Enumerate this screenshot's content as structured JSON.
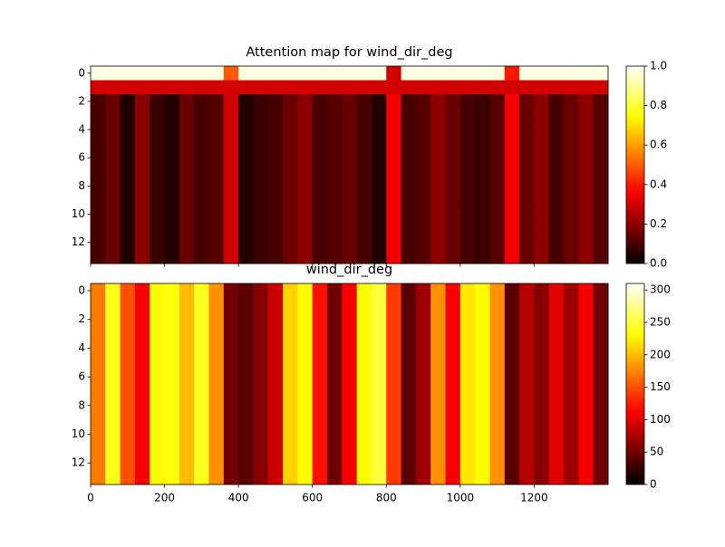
{
  "chart_data": [
    {
      "type": "heatmap",
      "title": "Attention map for wind_dir_deg",
      "colormap": "hot",
      "x_bins": [
        0,
        40,
        80,
        120,
        160,
        200,
        240,
        280,
        320,
        360,
        400,
        440,
        480,
        520,
        560,
        600,
        640,
        680,
        720,
        760,
        800,
        840,
        880,
        920,
        960,
        1000,
        1040,
        1080,
        1120,
        1160,
        1200,
        1240,
        1280,
        1320,
        1360,
        1400
      ],
      "z": [
        [
          0.97,
          0.97,
          0.97,
          0.97,
          0.97,
          0.97,
          0.97,
          0.97,
          0.97,
          0.5,
          0.97,
          0.97,
          0.97,
          0.97,
          0.97,
          0.97,
          0.97,
          0.97,
          0.97,
          0.97,
          0.3,
          0.97,
          0.97,
          0.97,
          0.97,
          0.97,
          0.97,
          0.97,
          0.4,
          0.97,
          0.97,
          0.97,
          0.97,
          0.97,
          0.97
        ],
        [
          0.3,
          0.3,
          0.3,
          0.3,
          0.3,
          0.3,
          0.3,
          0.3,
          0.3,
          0.3,
          0.3,
          0.3,
          0.3,
          0.3,
          0.3,
          0.3,
          0.3,
          0.3,
          0.3,
          0.3,
          0.3,
          0.3,
          0.3,
          0.3,
          0.3,
          0.3,
          0.3,
          0.3,
          0.3,
          0.3,
          0.3,
          0.3,
          0.3,
          0.3,
          0.3
        ],
        [
          0.1,
          0.15,
          0.05,
          0.2,
          0.08,
          0.05,
          0.15,
          0.1,
          0.12,
          0.3,
          0.05,
          0.08,
          0.1,
          0.15,
          0.2,
          0.1,
          0.12,
          0.15,
          0.1,
          0.05,
          0.35,
          0.1,
          0.12,
          0.2,
          0.15,
          0.1,
          0.08,
          0.12,
          0.35,
          0.15,
          0.2,
          0.1,
          0.15,
          0.2,
          0.12
        ],
        [
          0.1,
          0.15,
          0.05,
          0.2,
          0.08,
          0.05,
          0.15,
          0.1,
          0.12,
          0.3,
          0.05,
          0.08,
          0.1,
          0.15,
          0.2,
          0.1,
          0.12,
          0.15,
          0.1,
          0.05,
          0.35,
          0.1,
          0.12,
          0.2,
          0.15,
          0.1,
          0.08,
          0.12,
          0.35,
          0.15,
          0.2,
          0.1,
          0.15,
          0.2,
          0.12
        ],
        [
          0.1,
          0.15,
          0.05,
          0.2,
          0.08,
          0.05,
          0.15,
          0.1,
          0.12,
          0.3,
          0.05,
          0.08,
          0.1,
          0.15,
          0.2,
          0.1,
          0.12,
          0.15,
          0.1,
          0.05,
          0.35,
          0.1,
          0.12,
          0.2,
          0.15,
          0.1,
          0.08,
          0.12,
          0.35,
          0.15,
          0.2,
          0.1,
          0.15,
          0.2,
          0.12
        ],
        [
          0.1,
          0.15,
          0.05,
          0.2,
          0.08,
          0.05,
          0.15,
          0.1,
          0.12,
          0.3,
          0.05,
          0.08,
          0.1,
          0.15,
          0.2,
          0.1,
          0.12,
          0.15,
          0.1,
          0.05,
          0.35,
          0.1,
          0.12,
          0.2,
          0.15,
          0.1,
          0.08,
          0.12,
          0.35,
          0.15,
          0.2,
          0.1,
          0.15,
          0.2,
          0.12
        ],
        [
          0.1,
          0.15,
          0.05,
          0.2,
          0.08,
          0.05,
          0.15,
          0.1,
          0.12,
          0.3,
          0.05,
          0.08,
          0.1,
          0.15,
          0.2,
          0.1,
          0.12,
          0.15,
          0.1,
          0.05,
          0.35,
          0.1,
          0.12,
          0.2,
          0.15,
          0.1,
          0.08,
          0.12,
          0.35,
          0.15,
          0.2,
          0.1,
          0.15,
          0.2,
          0.12
        ],
        [
          0.1,
          0.15,
          0.05,
          0.2,
          0.08,
          0.05,
          0.15,
          0.1,
          0.12,
          0.3,
          0.05,
          0.08,
          0.1,
          0.15,
          0.2,
          0.1,
          0.12,
          0.15,
          0.1,
          0.05,
          0.35,
          0.1,
          0.12,
          0.2,
          0.15,
          0.1,
          0.08,
          0.12,
          0.35,
          0.15,
          0.2,
          0.1,
          0.15,
          0.2,
          0.12
        ],
        [
          0.1,
          0.15,
          0.05,
          0.2,
          0.08,
          0.05,
          0.15,
          0.1,
          0.12,
          0.3,
          0.05,
          0.08,
          0.1,
          0.15,
          0.2,
          0.1,
          0.12,
          0.15,
          0.1,
          0.05,
          0.35,
          0.1,
          0.12,
          0.2,
          0.15,
          0.1,
          0.08,
          0.12,
          0.35,
          0.15,
          0.2,
          0.1,
          0.15,
          0.2,
          0.12
        ],
        [
          0.1,
          0.15,
          0.05,
          0.2,
          0.08,
          0.05,
          0.15,
          0.1,
          0.12,
          0.3,
          0.05,
          0.08,
          0.1,
          0.15,
          0.2,
          0.1,
          0.12,
          0.15,
          0.1,
          0.05,
          0.35,
          0.1,
          0.12,
          0.2,
          0.15,
          0.1,
          0.08,
          0.12,
          0.35,
          0.15,
          0.2,
          0.1,
          0.15,
          0.2,
          0.12
        ],
        [
          0.1,
          0.15,
          0.05,
          0.2,
          0.08,
          0.05,
          0.15,
          0.1,
          0.12,
          0.3,
          0.05,
          0.08,
          0.1,
          0.15,
          0.2,
          0.1,
          0.12,
          0.15,
          0.1,
          0.05,
          0.35,
          0.1,
          0.12,
          0.2,
          0.15,
          0.1,
          0.08,
          0.12,
          0.35,
          0.15,
          0.2,
          0.1,
          0.15,
          0.2,
          0.12
        ],
        [
          0.1,
          0.15,
          0.05,
          0.2,
          0.08,
          0.05,
          0.15,
          0.1,
          0.12,
          0.3,
          0.05,
          0.08,
          0.1,
          0.15,
          0.2,
          0.1,
          0.12,
          0.15,
          0.1,
          0.05,
          0.35,
          0.1,
          0.12,
          0.2,
          0.15,
          0.1,
          0.08,
          0.12,
          0.35,
          0.15,
          0.2,
          0.1,
          0.15,
          0.2,
          0.12
        ],
        [
          0.1,
          0.15,
          0.05,
          0.2,
          0.08,
          0.05,
          0.15,
          0.1,
          0.12,
          0.3,
          0.05,
          0.08,
          0.1,
          0.15,
          0.2,
          0.1,
          0.12,
          0.15,
          0.1,
          0.05,
          0.35,
          0.1,
          0.12,
          0.2,
          0.15,
          0.1,
          0.08,
          0.12,
          0.35,
          0.15,
          0.2,
          0.1,
          0.15,
          0.2,
          0.12
        ],
        [
          0.1,
          0.15,
          0.05,
          0.2,
          0.08,
          0.05,
          0.15,
          0.1,
          0.12,
          0.3,
          0.05,
          0.08,
          0.1,
          0.15,
          0.2,
          0.1,
          0.12,
          0.15,
          0.1,
          0.05,
          0.35,
          0.1,
          0.12,
          0.2,
          0.15,
          0.1,
          0.08,
          0.12,
          0.35,
          0.15,
          0.2,
          0.1,
          0.15,
          0.2,
          0.12
        ]
      ],
      "xlim": [
        0,
        1400
      ],
      "xticks": [
        0,
        200,
        400,
        600,
        800,
        1000,
        1200
      ],
      "xtick_labels": false,
      "ylim": [
        13.5,
        -0.5
      ],
      "yticks": [
        0,
        2,
        4,
        6,
        8,
        10,
        12
      ],
      "clim": [
        0,
        1
      ],
      "cticks": [
        {
          "value": 0,
          "label": "0.0"
        },
        {
          "value": 0.2,
          "label": "0.2"
        },
        {
          "value": 0.4,
          "label": "0.4"
        },
        {
          "value": 0.6,
          "label": "0.6"
        },
        {
          "value": 0.8,
          "label": "0.8"
        },
        {
          "value": 1,
          "label": "1.0"
        }
      ]
    },
    {
      "type": "heatmap",
      "title": "wind_dir_deg",
      "colormap": "hot",
      "x_bins": [
        0,
        40,
        80,
        120,
        160,
        200,
        240,
        280,
        320,
        360,
        400,
        440,
        480,
        520,
        560,
        600,
        640,
        680,
        720,
        760,
        800,
        840,
        880,
        920,
        960,
        1000,
        1040,
        1080,
        1120,
        1160,
        1200,
        1240,
        1280,
        1320,
        1360,
        1400
      ],
      "values": [
        170,
        240,
        150,
        110,
        230,
        235,
        200,
        240,
        180,
        50,
        40,
        60,
        90,
        210,
        230,
        120,
        50,
        110,
        230,
        250,
        140,
        40,
        70,
        180,
        110,
        220,
        230,
        180,
        40,
        80,
        60,
        100,
        70,
        110,
        50
      ],
      "xlim": [
        0,
        1400
      ],
      "xticks": [
        0,
        200,
        400,
        600,
        800,
        1000,
        1200
      ],
      "xtick_labels": true,
      "ylim": [
        13.5,
        -0.5
      ],
      "yticks": [
        0,
        2,
        4,
        6,
        8,
        10,
        12
      ],
      "clim": [
        0,
        310
      ],
      "cticks": [
        0,
        50,
        100,
        150,
        200,
        250,
        300
      ]
    }
  ]
}
